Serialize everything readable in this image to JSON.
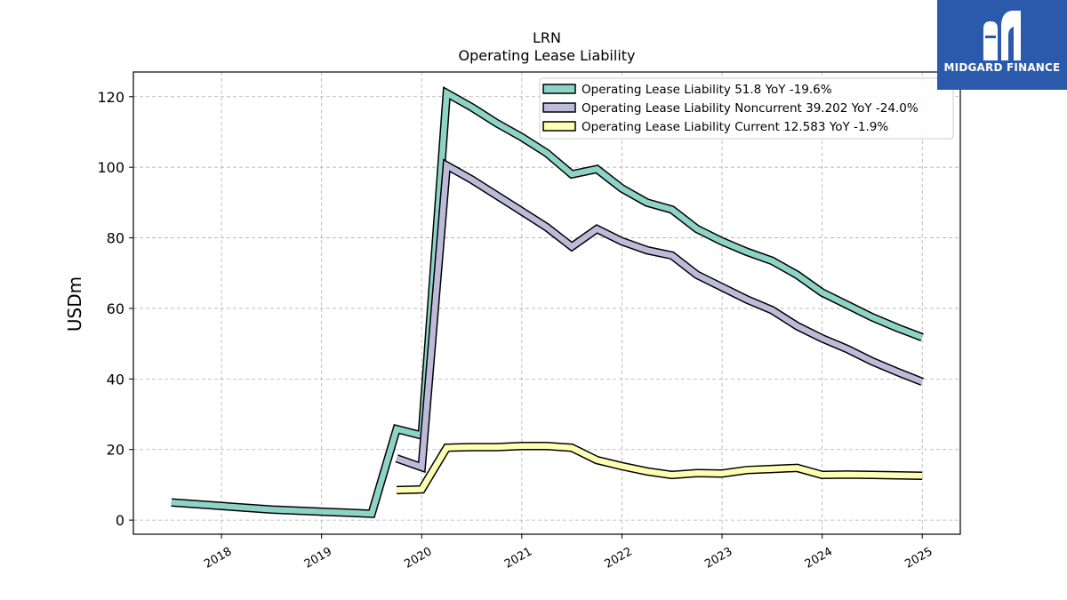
{
  "chart_data": {
    "type": "line",
    "title": "LRN",
    "subtitle": "Operating Lease Liability",
    "ylabel": "USDm",
    "xlabel": "",
    "ylim": [
      -4,
      127
    ],
    "xlim": [
      2017.12,
      2025.38
    ],
    "yticks": [
      0,
      20,
      40,
      60,
      80,
      100,
      120
    ],
    "xticks": [
      2018,
      2019,
      2020,
      2021,
      2022,
      2023,
      2024,
      2025
    ],
    "grid": true,
    "legend_position": "top-right",
    "series": [
      {
        "name": "Operating Lease Liability  51.8 YoY -19.6%",
        "color": "#8dd3c7",
        "x": [
          2017.5,
          2018.5,
          2019.5,
          2019.75,
          2020.0,
          2020.25,
          2020.5,
          2020.75,
          2021.0,
          2021.25,
          2021.5,
          2021.75,
          2022.0,
          2022.25,
          2022.5,
          2022.75,
          2023.0,
          2023.25,
          2023.5,
          2023.75,
          2024.0,
          2024.25,
          2024.5,
          2024.75,
          2025.0
        ],
        "values": [
          5.0,
          3.0,
          1.8,
          25.8,
          24.0,
          121.0,
          117.0,
          112.5,
          108.5,
          104.0,
          98.0,
          99.5,
          94.0,
          90.0,
          88.0,
          82.5,
          79.0,
          76.0,
          73.5,
          69.5,
          64.5,
          61.0,
          57.5,
          54.5,
          51.8
        ]
      },
      {
        "name": "Operating Lease Liability Noncurrent  39.202 YoY -24.0%",
        "color": "#bebada",
        "x": [
          2019.75,
          2020.0,
          2020.25,
          2020.5,
          2020.75,
          2021.0,
          2021.25,
          2021.5,
          2021.75,
          2022.0,
          2022.25,
          2022.5,
          2022.75,
          2023.0,
          2023.25,
          2023.5,
          2023.75,
          2024.0,
          2024.25,
          2024.5,
          2024.75,
          2025.0
        ],
        "values": [
          17.5,
          15.0,
          100.5,
          96.5,
          92.0,
          87.5,
          83.0,
          77.5,
          82.5,
          79.0,
          76.5,
          75.0,
          69.5,
          66.0,
          62.5,
          59.5,
          55.0,
          51.5,
          48.5,
          45.0,
          42.0,
          39.202
        ]
      },
      {
        "name": "Operating Lease Liability Current  12.583 YoY -1.9%",
        "color": "#ffffb3",
        "x": [
          2019.75,
          2020.0,
          2020.25,
          2020.5,
          2020.75,
          2021.0,
          2021.25,
          2021.5,
          2021.75,
          2022.0,
          2022.25,
          2022.5,
          2022.75,
          2023.0,
          2023.25,
          2023.5,
          2023.75,
          2024.0,
          2024.25,
          2024.5,
          2024.75,
          2025.0
        ],
        "values": [
          8.5,
          8.7,
          20.5,
          20.7,
          20.7,
          21.0,
          21.0,
          20.5,
          17.0,
          15.3,
          13.8,
          12.8,
          13.3,
          13.2,
          14.2,
          14.5,
          14.8,
          12.8,
          12.9,
          12.8,
          12.7,
          12.583
        ]
      }
    ]
  },
  "logo": {
    "text": "MIDGARD FINANCE",
    "color": "#2b59ab"
  }
}
